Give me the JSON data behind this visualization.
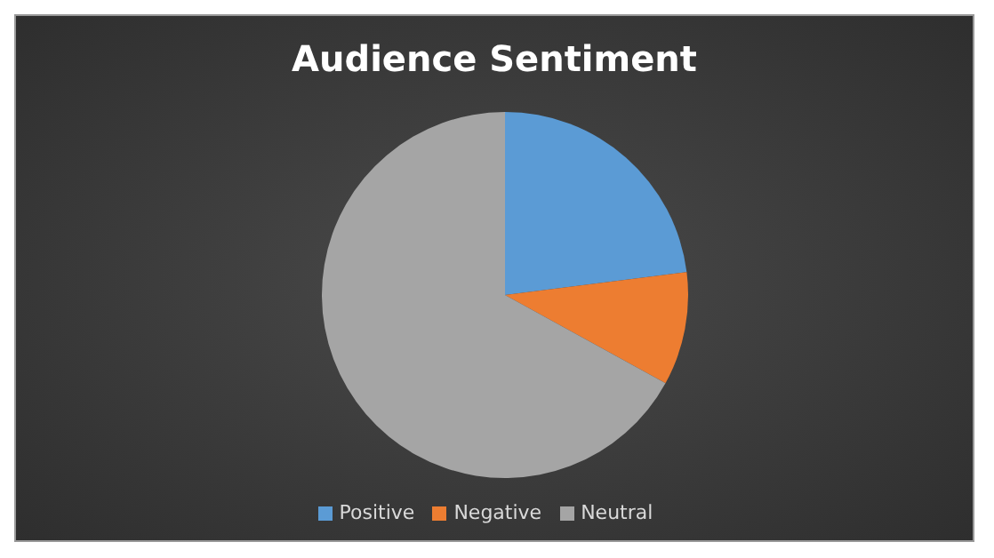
{
  "chart_data": {
    "type": "pie",
    "title": "Audience Sentiment",
    "categories": [
      "Positive",
      "Negative",
      "Neutral"
    ],
    "values": [
      23,
      10,
      67
    ],
    "colors": [
      "#5b9bd5",
      "#ed7d31",
      "#a5a5a5"
    ],
    "legend": "bottom"
  }
}
